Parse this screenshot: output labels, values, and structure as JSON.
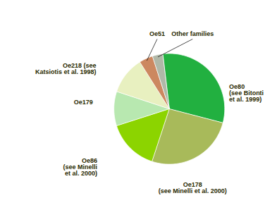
{
  "chart_data": {
    "type": "pie",
    "categories": [
      "Oe80\n(see Bitonti\net al. 1999)",
      "Oe178\n(see Minelli et al. 2000)",
      "Oe86\n(see Minelli\net al. 2000)",
      "Oe179",
      "Oe218 (see\nKatsiotis et al. 1998)",
      "Oe51",
      "Other families"
    ],
    "values": [
      31,
      26,
      15,
      10,
      11,
      4,
      3
    ],
    "colors": [
      "#22b040",
      "#a8ba5a",
      "#8cd400",
      "#b8e8b0",
      "#e8f0c0",
      "#cc8860",
      "#b0b8a8"
    ]
  }
}
